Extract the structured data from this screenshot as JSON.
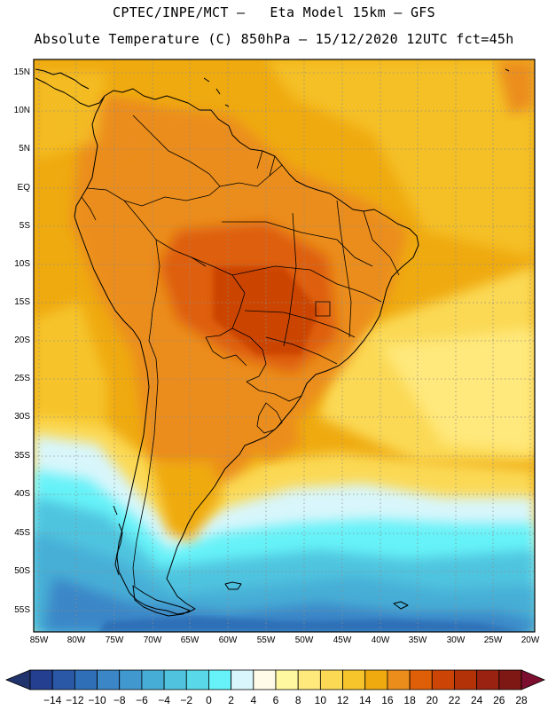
{
  "title_line1": "CPTEC/INPE/MCT –   Eta Model 15km – GFS",
  "title_line2": "Absolute Temperature (C) 850hPa – 15/12/2020 12UTC fct=45h",
  "map": {
    "lat_labels": [
      "15N",
      "10N",
      "5N",
      "EQ",
      "5S",
      "10S",
      "15S",
      "20S",
      "25S",
      "30S",
      "35S",
      "40S",
      "45S",
      "50S",
      "55S"
    ],
    "lon_labels": [
      "85W",
      "80W",
      "75W",
      "70W",
      "65W",
      "60W",
      "55W",
      "50W",
      "45W",
      "40W",
      "35W",
      "30W",
      "25W",
      "20W"
    ]
  },
  "colorbar": {
    "labels": [
      "-14",
      "-12",
      "-10",
      "-8",
      "-6",
      "-4",
      "-2",
      "0",
      "2",
      "4",
      "6",
      "8",
      "10",
      "12",
      "14",
      "16",
      "18",
      "20",
      "22",
      "24",
      "26",
      "28"
    ],
    "colors": [
      "#243f8f",
      "#2a58a6",
      "#2f6fb7",
      "#3a86c7",
      "#4098cf",
      "#46aed6",
      "#50c4df",
      "#58d8e8",
      "#66f2f8",
      "#d8f6fb",
      "#fffbe8",
      "#fff8a0",
      "#ffe87c",
      "#fbd955",
      "#f6c42b",
      "#efaa10",
      "#eb8d1a",
      "#de5f08",
      "#cc4506",
      "#b43208",
      "#9a2211",
      "#7d1814"
    ],
    "under_color": "#21336d",
    "over_color": "#7c0f30"
  }
}
